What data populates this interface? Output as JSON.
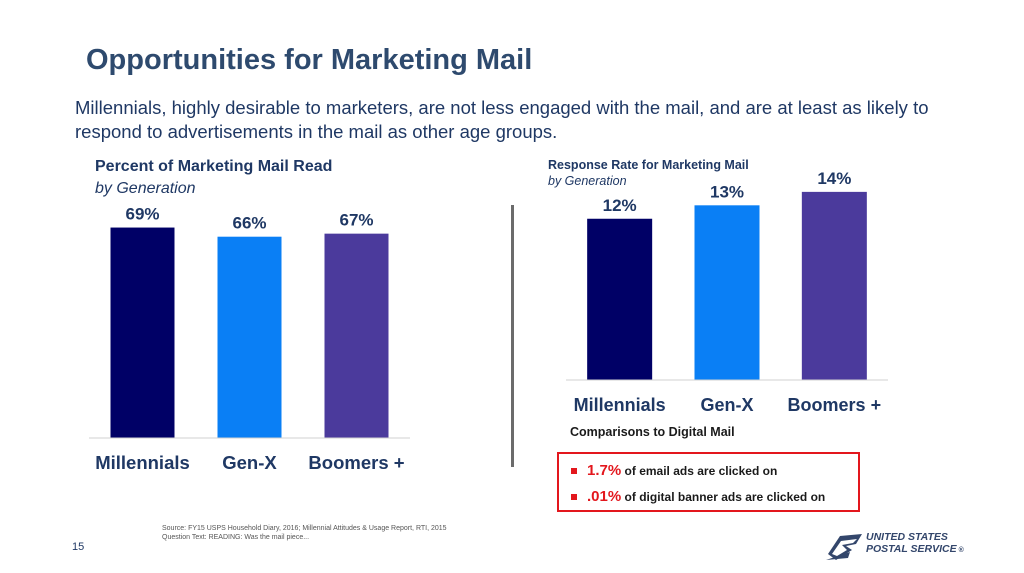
{
  "title": "Opportunities for Marketing Mail",
  "subtitle": "Millennials, highly desirable to marketers, are not less engaged with the mail, and are at least as likely to respond to advertisements in the mail as other age groups.",
  "chart_data": [
    {
      "type": "bar",
      "title": "Percent of Marketing Mail Read",
      "subtitle": "by Generation",
      "categories": [
        "Millennials",
        "Gen-X",
        "Boomers +"
      ],
      "values": [
        69,
        66,
        67
      ],
      "labels": [
        "69%",
        "66%",
        "67%"
      ],
      "colors": [
        "#000066",
        "#0a7ff5",
        "#4b3a9c"
      ],
      "ylim": [
        0,
        80
      ],
      "grid": false
    },
    {
      "type": "bar",
      "title": "Response Rate for Marketing Mail",
      "subtitle": "by Generation",
      "categories": [
        "Millennials",
        "Gen-X",
        "Boomers +"
      ],
      "values": [
        12,
        13,
        14
      ],
      "labels": [
        "12%",
        "13%",
        "14%"
      ],
      "colors": [
        "#000066",
        "#0a7ff5",
        "#4b3a9c"
      ],
      "ylim": [
        0,
        16
      ],
      "grid": false
    }
  ],
  "comparisons": {
    "title": "Comparisons to Digital Mail",
    "items": [
      {
        "value": "1.7%",
        "text": " of email ads are clicked on"
      },
      {
        "value": ".01%",
        "text": " of digital banner ads are clicked on"
      }
    ]
  },
  "source_lines": [
    "Source: FY15 USPS Household Diary, 2016; Millennial Attitudes & Usage Report, RTI, 2015",
    "Question Text: READING: Was the mail piece..."
  ],
  "page_number": "15",
  "logo": {
    "line1": "UNITED STATES",
    "line2": "POSTAL SERVICE",
    "mark": "®"
  },
  "colors": {
    "title": "#2e4a6e",
    "accent_red": "#e3171d"
  }
}
